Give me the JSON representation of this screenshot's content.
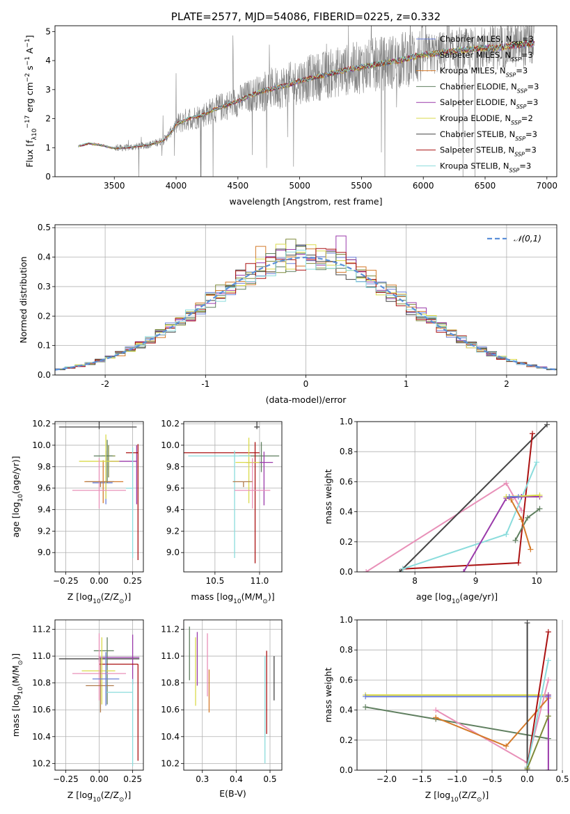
{
  "chart_data": [
    {
      "id": "spectrum",
      "type": "line",
      "title": "PLATE=2577, MJD=54086, FIBERID=0225, z=0.332",
      "xlabel": "wavelength [Angstrom, rest frame]",
      "ylabel_parts": [
        "Flux [f",
        "λ",
        "10",
        "−17",
        " erg cm",
        "−2",
        " s",
        "−1",
        " A",
        "−1",
        "]"
      ],
      "xlim": [
        3020,
        7080
      ],
      "ylim": [
        0,
        5.2
      ],
      "xticks": [
        3500,
        4000,
        4500,
        5000,
        5500,
        6000,
        6500,
        7000
      ],
      "yticks": [
        0,
        1,
        2,
        3,
        4,
        5
      ],
      "grid": false,
      "legend_position": "top-right",
      "data_wavelength_range": [
        3210,
        6900
      ],
      "continuum": {
        "x": [
          3210,
          3300,
          3400,
          3500,
          3600,
          3700,
          3800,
          3900,
          3950,
          4000,
          4100,
          4200,
          4300,
          4400,
          4500,
          4600,
          4700,
          4800,
          4900,
          5000,
          5200,
          5400,
          5600,
          5800,
          6000,
          6200,
          6400,
          6600,
          6800,
          6900
        ],
        "y": [
          1.05,
          1.15,
          1.08,
          0.98,
          1.0,
          1.05,
          1.12,
          1.25,
          1.5,
          1.8,
          2.0,
          2.1,
          2.3,
          2.45,
          2.6,
          2.8,
          2.95,
          3.05,
          3.15,
          3.3,
          3.5,
          3.7,
          3.85,
          4.0,
          4.2,
          4.3,
          4.4,
          4.45,
          4.55,
          4.6
        ]
      },
      "series": [
        {
          "name": "Chabrier MILES",
          "nssp": "3",
          "color": "#6a7fd8"
        },
        {
          "name": "Salpeter MILES",
          "nssp": "3",
          "color": "#7e8a3a"
        },
        {
          "name": "Kroupa MILES",
          "nssp": "3",
          "color": "#d47a2a"
        },
        {
          "name": "Chabrier ELODIE",
          "nssp": "3",
          "color": "#5f7f5f"
        },
        {
          "name": "Salpeter ELODIE",
          "nssp": "3",
          "color": "#9a3aaa"
        },
        {
          "name": "Kroupa ELODIE",
          "nssp": "2",
          "color": "#dada4a"
        },
        {
          "name": "Chabrier STELIB",
          "nssp": "3",
          "color": "#444444"
        },
        {
          "name": "Salpeter STELIB",
          "nssp": "3",
          "color": "#aa1111"
        },
        {
          "name": "Kroupa STELIB",
          "nssp": "3",
          "color": "#8adcdc"
        }
      ],
      "observed_color": "#808080"
    },
    {
      "id": "residuals",
      "type": "histogram",
      "xlabel": "(data-model)/error",
      "ylabel": "Normed distribution",
      "xlim": [
        -2.5,
        2.5
      ],
      "ylim": [
        0,
        0.51
      ],
      "xticks": [
        -2,
        -1,
        0,
        1,
        2
      ],
      "yticks": [
        0.0,
        0.1,
        0.2,
        0.3,
        0.4,
        0.5
      ],
      "grid": true,
      "legend": "𝒩(0,1)",
      "legend_position": "top-right",
      "normal_color": "#5b8fd8",
      "bin_width": 0.1
    },
    {
      "id": "age-vs-Z",
      "type": "errorbar",
      "xlabel_parts": [
        "Z [log",
        "10",
        "(Z/Z",
        "⊙",
        ")]"
      ],
      "ylabel_parts": [
        "age  [log",
        "10",
        "(age/yr)]"
      ],
      "xlim": [
        -0.33,
        0.33
      ],
      "ylim": [
        8.82,
        10.22
      ],
      "xticks": [
        -0.25,
        0.0,
        0.25
      ],
      "xtick_labels": [
        "−0.25",
        "0.00",
        "0.25"
      ],
      "yticks": [
        9.0,
        9.2,
        9.4,
        9.6,
        9.8,
        10.0,
        10.2
      ],
      "grid": true,
      "points": [
        {
          "color": "#6a7fd8",
          "x": 0.05,
          "xerr": [
            0.1,
            0.05
          ],
          "y": 9.65,
          "yerr": [
            0.2,
            0.3
          ]
        },
        {
          "color": "#7e8a3a",
          "x": 0.07,
          "xerr": [
            0.05,
            0.05
          ],
          "y": 9.9,
          "yerr": [
            0.2,
            0.1
          ]
        },
        {
          "color": "#d47a2a",
          "x": 0.03,
          "xerr": [
            0.14,
            0.15
          ],
          "y": 9.66,
          "yerr": [
            0.2,
            0.2
          ]
        },
        {
          "color": "#5f7f5f",
          "x": 0.06,
          "xerr": [
            0.1,
            0.04
          ],
          "y": 9.9,
          "yerr": [
            0.25,
            0.15
          ]
        },
        {
          "color": "#9a3aaa",
          "x": 0.28,
          "xerr": [
            0.2,
            0.0
          ],
          "y": 9.85,
          "yerr": [
            0.4,
            0.15
          ]
        },
        {
          "color": "#dada4a",
          "x": 0.05,
          "xerr": [
            0.2,
            0.1
          ],
          "y": 9.85,
          "yerr": [
            0.35,
            0.25
          ]
        },
        {
          "color": "#444444",
          "x": 0.0,
          "xerr": [
            0.3,
            0.28
          ],
          "y": 10.17,
          "yerr": [
            0.02,
            0.05
          ]
        },
        {
          "color": "#aa1111",
          "x": 0.29,
          "xerr": [
            0.09,
            0.0
          ],
          "y": 9.93,
          "yerr": [
            1.0,
            0.08
          ]
        },
        {
          "color": "#e890b8",
          "x": 0.0,
          "xerr": [
            0.2,
            0.2
          ],
          "y": 9.58,
          "yerr": [
            0.17,
            0.3
          ]
        },
        {
          "color": "#8adcdc",
          "x": 0.25,
          "xerr": [
            0.05,
            0.0
          ],
          "y": 9.6,
          "yerr": [
            0.65,
            0.38
          ]
        },
        {
          "color": "#b07a4a",
          "x": 0.01,
          "xerr": [
            0.11,
            0.1
          ],
          "y": 9.66,
          "yerr": [
            0.05,
            0.0
          ]
        }
      ]
    },
    {
      "id": "age-vs-mass",
      "type": "errorbar",
      "xlabel_parts": [
        "mass [log",
        "10",
        "(M/M",
        "⊙",
        ")]"
      ],
      "ylabel": "",
      "xlim": [
        10.15,
        11.25
      ],
      "ylim": [
        8.82,
        10.22
      ],
      "xticks": [
        10.5,
        11.0
      ],
      "xtick_labels": [
        "10.5",
        "11.0"
      ],
      "yticks": [
        9.0,
        9.2,
        9.4,
        9.6,
        9.8,
        10.0,
        10.2
      ],
      "grid": true,
      "points": [
        {
          "color": "#444444",
          "x": 10.97,
          "xerr": [
            0.03,
            0.03
          ],
          "y": 10.17,
          "yerr": [
            0.02,
            0.05
          ]
        },
        {
          "color": "#5f7f5f",
          "x": 11.02,
          "xerr": [
            0.25,
            0.2
          ],
          "y": 9.9,
          "yerr": [
            0.15,
            0.13
          ]
        },
        {
          "color": "#aa1111",
          "x": 10.95,
          "xerr": [
            0.8,
            0.05
          ],
          "y": 9.93,
          "yerr": [
            1.03,
            0.1
          ]
        },
        {
          "color": "#9a3aaa",
          "x": 11.05,
          "xerr": [
            0.2,
            0.1
          ],
          "y": 9.84,
          "yerr": [
            0.4,
            0.1
          ]
        },
        {
          "color": "#dada4a",
          "x": 10.88,
          "xerr": [
            0.15,
            0.12
          ],
          "y": 9.84,
          "yerr": [
            0.38,
            0.23
          ]
        },
        {
          "color": "#8adcdc",
          "x": 10.72,
          "xerr": [
            0.52,
            0.18
          ],
          "y": 9.9,
          "yerr": [
            0.95,
            0.05
          ]
        },
        {
          "color": "#e890b8",
          "x": 10.92,
          "xerr": [
            0.2,
            0.2
          ],
          "y": 9.58,
          "yerr": [
            0.17,
            0.3
          ]
        },
        {
          "color": "#b07a4a",
          "x": 10.82,
          "xerr": [
            0.12,
            0.1
          ],
          "y": 9.66,
          "yerr": [
            0.05,
            0.0
          ]
        }
      ]
    },
    {
      "id": "weight-vs-age",
      "type": "line",
      "xlabel_parts": [
        "age  [log",
        "10",
        "(age/yr)]"
      ],
      "ylabel": "mass weight",
      "xlim": [
        7.05,
        10.33
      ],
      "ylim": [
        0,
        1.0
      ],
      "xticks": [
        8,
        9,
        10
      ],
      "yticks": [
        0.0,
        0.2,
        0.4,
        0.6,
        0.8,
        1.0
      ],
      "grid": true,
      "series": [
        {
          "color": "#e890b8",
          "x": [
            7.2,
            9.5,
            9.75
          ],
          "y": [
            0.0,
            0.59,
            0.41
          ]
        },
        {
          "color": "#444444",
          "x": [
            7.75,
            10.17
          ],
          "y": [
            0.0,
            0.98
          ]
        },
        {
          "color": "#aa1111",
          "x": [
            7.8,
            9.7,
            9.93
          ],
          "y": [
            0.02,
            0.06,
            0.92
          ]
        },
        {
          "color": "#8adcdc",
          "x": [
            7.8,
            9.5,
            10.0
          ],
          "y": [
            0.02,
            0.25,
            0.73
          ]
        },
        {
          "color": "#9a3aaa",
          "x": [
            8.8,
            9.5,
            9.75
          ],
          "y": [
            0.0,
            0.49,
            0.5
          ]
        },
        {
          "color": "#9a3aaa",
          "x": [
            9.75,
            10.05
          ],
          "y": [
            0.5,
            0.5
          ]
        },
        {
          "color": "#dada4a",
          "x": [
            9.5,
            10.05
          ],
          "y": [
            0.5,
            0.51
          ]
        },
        {
          "color": "#5f7f5f",
          "x": [
            9.65,
            9.85,
            10.05
          ],
          "y": [
            0.21,
            0.36,
            0.42
          ]
        },
        {
          "color": "#d47a2a",
          "x": [
            9.58,
            9.75,
            9.9
          ],
          "y": [
            0.48,
            0.35,
            0.15
          ]
        },
        {
          "color": "#6a7fd8",
          "x": [
            9.55,
            9.7
          ],
          "y": [
            0.5,
            0.5
          ]
        }
      ]
    },
    {
      "id": "mass-vs-Z",
      "type": "errorbar",
      "xlabel_parts": [
        "Z [log",
        "10",
        "(Z/Z",
        "⊙",
        ")]"
      ],
      "ylabel_parts": [
        "mass [log",
        "10",
        "(M/M",
        "⊙",
        ")]"
      ],
      "xlim": [
        -0.33,
        0.33
      ],
      "ylim": [
        10.15,
        11.27
      ],
      "xticks": [
        -0.25,
        0.0,
        0.25
      ],
      "xtick_labels": [
        "−0.25",
        "0.00",
        "0.25"
      ],
      "yticks": [
        10.2,
        10.4,
        10.6,
        10.8,
        11.0,
        11.2
      ],
      "grid": true,
      "points": [
        {
          "color": "#444444",
          "x": 0.0,
          "xerr": [
            0.3,
            0.3
          ],
          "y": 10.98,
          "yerr": [
            0.02,
            0.02
          ]
        },
        {
          "color": "#5f7f5f",
          "x": 0.06,
          "xerr": [
            0.1,
            0.05
          ],
          "y": 11.04,
          "yerr": [
            0.4,
            0.1
          ]
        },
        {
          "color": "#9a3aaa",
          "x": 0.25,
          "xerr": [
            0.25,
            0.05
          ],
          "y": 10.99,
          "yerr": [
            0.2,
            0.17
          ]
        },
        {
          "color": "#aa1111",
          "x": 0.29,
          "xerr": [
            0.29,
            0.0
          ],
          "y": 10.94,
          "yerr": [
            0.72,
            0.0
          ]
        },
        {
          "color": "#dada4a",
          "x": 0.02,
          "xerr": [
            0.15,
            0.1
          ],
          "y": 10.89,
          "yerr": [
            0.25,
            0.25
          ]
        },
        {
          "color": "#e890b8",
          "x": 0.0,
          "xerr": [
            0.2,
            0.2
          ],
          "y": 10.87,
          "yerr": [
            0.2,
            0.3
          ]
        },
        {
          "color": "#b07a4a",
          "x": 0.01,
          "xerr": [
            0.11,
            0.1
          ],
          "y": 10.78,
          "yerr": [
            0.2,
            0.2
          ]
        },
        {
          "color": "#8adcdc",
          "x": 0.25,
          "xerr": [
            0.2,
            0.0
          ],
          "y": 10.73,
          "yerr": [
            0.55,
            0.1
          ]
        },
        {
          "color": "#6a7fd8",
          "x": 0.05,
          "xerr": [
            0.1,
            0.1
          ],
          "y": 10.83,
          "yerr": [
            0.2,
            0.2
          ]
        }
      ]
    },
    {
      "id": "mass-vs-ebv",
      "type": "errorbar",
      "xlabel": "E(B-V)",
      "ylabel": "",
      "xlim": [
        0.245,
        0.535
      ],
      "ylim": [
        10.15,
        11.27
      ],
      "xticks": [
        0.3,
        0.4,
        0.5
      ],
      "xtick_labels": [
        "0.3",
        "0.4",
        "0.5"
      ],
      "yticks": [
        10.2,
        10.4,
        10.6,
        10.8,
        11.0,
        11.2
      ],
      "grid": true,
      "points": [
        {
          "color": "#5f7f5f",
          "x": 0.262,
          "y": 11.02,
          "yerr": [
            0.2,
            0.2
          ]
        },
        {
          "color": "#dada4a",
          "x": 0.28,
          "y": 10.9,
          "yerr": [
            0.27,
            0.24
          ]
        },
        {
          "color": "#9a3aaa",
          "x": 0.285,
          "y": 10.98,
          "yerr": [
            0.2,
            0.2
          ]
        },
        {
          "color": "#e890b8",
          "x": 0.315,
          "y": 10.95,
          "yerr": [
            0.25,
            0.22
          ]
        },
        {
          "color": "#d47a2a",
          "x": 0.32,
          "y": 10.78,
          "yerr": [
            0.2,
            0.12
          ]
        },
        {
          "color": "#8adcdc",
          "x": 0.485,
          "y": 10.6,
          "yerr": [
            0.4,
            0.4
          ]
        },
        {
          "color": "#aa1111",
          "x": 0.49,
          "y": 10.75,
          "yerr": [
            0.33,
            0.29
          ]
        },
        {
          "color": "#444444",
          "x": 0.512,
          "y": 10.83,
          "yerr": [
            0.16,
            0.17
          ]
        }
      ]
    },
    {
      "id": "weight-vs-Z",
      "type": "line",
      "xlabel_parts": [
        "Z [log",
        "10",
        "(Z/Z",
        "⊙",
        ")]"
      ],
      "ylabel": "mass weight",
      "xlim": [
        -2.42,
        0.42
      ],
      "ylim": [
        0,
        1.0
      ],
      "xticks": [
        -2.0,
        -1.5,
        -1.0,
        -0.5,
        0.0,
        0.5
      ],
      "xtick_labels": [
        "−2.0",
        "−1.5",
        "−1.0",
        "−0.5",
        "0.0",
        "0.5"
      ],
      "yticks": [
        0.0,
        0.2,
        0.4,
        0.6,
        0.8,
        1.0
      ],
      "grid": true,
      "series": [
        {
          "color": "#dada4a",
          "x": [
            -2.3,
            0.3
          ],
          "y": [
            0.5,
            0.5
          ]
        },
        {
          "color": "#6a7fd8",
          "x": [
            -2.3,
            0.3
          ],
          "y": [
            0.49,
            0.49
          ]
        },
        {
          "color": "#5f7f5f",
          "x": [
            -2.3,
            -1.3,
            0.3
          ],
          "y": [
            0.42,
            0.34,
            0.21
          ]
        },
        {
          "color": "#e890b8",
          "x": [
            -1.3,
            0.0,
            0.3
          ],
          "y": [
            0.4,
            0.05,
            0.6
          ]
        },
        {
          "color": "#d47a2a",
          "x": [
            -1.3,
            -0.3,
            0.3
          ],
          "y": [
            0.35,
            0.16,
            0.48
          ]
        },
        {
          "color": "#444444",
          "x": [
            0.0,
            0.0
          ],
          "y": [
            0.0,
            0.98
          ]
        },
        {
          "color": "#aa1111",
          "x": [
            0.0,
            0.3
          ],
          "y": [
            0.02,
            0.92
          ]
        },
        {
          "color": "#8adcdc",
          "x": [
            0.0,
            0.3
          ],
          "y": [
            0.02,
            0.73
          ]
        },
        {
          "color": "#9a3aaa",
          "x": [
            0.3,
            0.3
          ],
          "y": [
            0.0,
            0.5
          ]
        },
        {
          "color": "#7e8a3a",
          "x": [
            0.0,
            0.3
          ],
          "y": [
            0.01,
            0.36
          ]
        }
      ]
    }
  ]
}
